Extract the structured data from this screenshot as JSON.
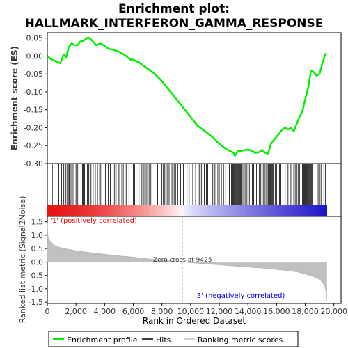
{
  "chart_data": [
    {
      "panel": "enrichment",
      "type": "line",
      "title_line1": "Enrichment plot:",
      "title_line2": "HALLMARK_INTERFERON_GAMMA_RESPONSE",
      "ylabel": "Enrichment score (ES)",
      "xlim": [
        0,
        20500
      ],
      "ylim": [
        -0.3,
        0.065
      ],
      "yticks": [
        "0.05",
        "0.00",
        "-0.05",
        "-0.10",
        "-0.15",
        "-0.20",
        "-0.25",
        "-0.30"
      ],
      "ytick_values": [
        0.05,
        0.0,
        -0.05,
        -0.1,
        -0.15,
        -0.2,
        -0.25,
        -0.3
      ],
      "series_color": "#00ee00",
      "x": [
        0,
        300,
        600,
        900,
        1150,
        1300,
        1500,
        1700,
        1900,
        2100,
        2300,
        2500,
        2700,
        2850,
        3000,
        3200,
        3400,
        3700,
        4000,
        4300,
        4600,
        5000,
        5400,
        5800,
        6000,
        6400,
        7000,
        7500,
        8000,
        8500,
        9000,
        9500,
        10000,
        10500,
        11000,
        11500,
        12000,
        12500,
        13000,
        13100,
        13300,
        13500,
        13800,
        14100,
        14300,
        14500,
        14800,
        15000,
        15200,
        15400,
        15600,
        15800,
        16000,
        16200,
        16400,
        16600,
        16800,
        17000,
        17200,
        17400,
        17600,
        17800,
        18000,
        18200,
        18400,
        18600,
        18800,
        19000,
        19200,
        19400,
        19500
      ],
      "y": [
        0.0,
        -0.01,
        -0.015,
        -0.02,
        0.005,
        -0.005,
        0.025,
        0.035,
        0.03,
        0.03,
        0.04,
        0.042,
        0.048,
        0.052,
        0.048,
        0.04,
        0.03,
        0.035,
        0.028,
        0.02,
        0.018,
        0.012,
        0.003,
        -0.01,
        -0.01,
        -0.018,
        -0.035,
        -0.05,
        -0.07,
        -0.095,
        -0.12,
        -0.145,
        -0.17,
        -0.195,
        -0.21,
        -0.225,
        -0.245,
        -0.26,
        -0.27,
        -0.278,
        -0.265,
        -0.265,
        -0.262,
        -0.262,
        -0.265,
        -0.27,
        -0.268,
        -0.262,
        -0.27,
        -0.272,
        -0.245,
        -0.235,
        -0.225,
        -0.215,
        -0.205,
        -0.2,
        -0.205,
        -0.2,
        -0.21,
        -0.19,
        -0.17,
        -0.155,
        -0.12,
        -0.09,
        -0.04,
        -0.045,
        -0.055,
        -0.05,
        -0.02,
        0.005,
        0.008
      ]
    },
    {
      "panel": "hits",
      "type": "scatter",
      "series_name": "Hits",
      "x": [
        350,
        800,
        1000,
        1150,
        1300,
        1400,
        1500,
        1550,
        1650,
        1750,
        1850,
        2000,
        2100,
        2200,
        2350,
        2450,
        2500,
        2550,
        2600,
        2700,
        2800,
        2850,
        2900,
        3050,
        3200,
        3350,
        3500,
        3650,
        3700,
        3800,
        4050,
        4250,
        4400,
        4600,
        4700,
        4800,
        5000,
        5200,
        5300,
        5500,
        5700,
        5900,
        6000,
        6100,
        6200,
        6400,
        6600,
        6750,
        6900,
        7000,
        7100,
        7200,
        7300,
        7500,
        7700,
        7800,
        8000,
        8100,
        8200,
        8300,
        8400,
        8500,
        8700,
        8850,
        8950,
        9100,
        9300,
        9500,
        9750,
        9900,
        10150,
        10350,
        10600,
        10750,
        10850,
        10950,
        11000,
        11100,
        11200,
        11300,
        11550,
        11700,
        11900,
        12000,
        12150,
        12300,
        12450,
        12600,
        12700,
        12850,
        12950,
        13000,
        13050,
        13100,
        13150,
        13200,
        13250,
        13300,
        13350,
        13400,
        13450,
        13500,
        13550,
        13600,
        13700,
        13800,
        13900,
        14000,
        14100,
        14300,
        14400,
        14500,
        14600,
        14700,
        14800,
        14900,
        15000,
        15100,
        15200,
        15300,
        15400,
        15450,
        15500,
        15550,
        15600,
        15650,
        15700,
        15750,
        15800,
        15900,
        16000,
        16100,
        16200,
        16300,
        16450,
        16600,
        16800,
        17000,
        17200,
        17300,
        17400,
        17500,
        17600,
        17700,
        17800,
        17900,
        17950,
        18000,
        18050,
        18100,
        18150,
        18200,
        18250,
        18300,
        18350,
        18400,
        18450,
        18500,
        18900,
        19000,
        19100,
        19300,
        19400,
        19450
      ]
    },
    {
      "panel": "ranked-metric",
      "type": "area",
      "ylabel": "Ranked list metric (Signal2Noise)",
      "xlabel": "Rank in Ordered Dataset",
      "xlim": [
        0,
        20500
      ],
      "ylim": [
        -1.55,
        1.7
      ],
      "xticks": [
        "0",
        "2,000",
        "4,000",
        "6,000",
        "8,000",
        "10,000",
        "12,000",
        "14,000",
        "16,000",
        "18,000",
        "20,000"
      ],
      "xtick_values": [
        0,
        2000,
        4000,
        6000,
        8000,
        10000,
        12000,
        14000,
        16000,
        18000,
        20000
      ],
      "yticks": [
        "1.5",
        "1.0",
        "0.5",
        "0.0",
        "-0.5",
        "-1.0",
        "-1.5"
      ],
      "ytick_values": [
        1.5,
        1.0,
        0.5,
        0.0,
        -0.5,
        -1.0,
        -1.5
      ],
      "zero_cross": 9425,
      "zero_cross_label": "Zero cross at 9425",
      "pos_label": "'1' (positively correlated)",
      "neg_label": "'3' (negatively correlated)",
      "pos_color": "#ff0000",
      "neg_color": "#0000ff",
      "fill_color": "#c0c0c0",
      "x": [
        0,
        50,
        200,
        500,
        1000,
        2000,
        3000,
        4000,
        5000,
        6000,
        7000,
        8000,
        9000,
        9425,
        10000,
        11000,
        12000,
        13000,
        14000,
        15000,
        16000,
        17000,
        17500,
        18000,
        18500,
        19000,
        19200,
        19350,
        19450,
        19500
      ],
      "y": [
        1.45,
        0.95,
        0.78,
        0.62,
        0.52,
        0.42,
        0.35,
        0.29,
        0.23,
        0.18,
        0.12,
        0.07,
        0.02,
        0.0,
        -0.03,
        -0.07,
        -0.11,
        -0.15,
        -0.19,
        -0.23,
        -0.28,
        -0.34,
        -0.38,
        -0.45,
        -0.53,
        -0.65,
        -0.75,
        -0.9,
        -1.1,
        -1.45
      ]
    }
  ],
  "legend": {
    "items": [
      {
        "label": "Enrichment profile",
        "color": "#00ee00"
      },
      {
        "label": "Hits",
        "color": "#000000"
      },
      {
        "label": "Ranking metric scores",
        "color": "#c0c0c0"
      }
    ]
  }
}
